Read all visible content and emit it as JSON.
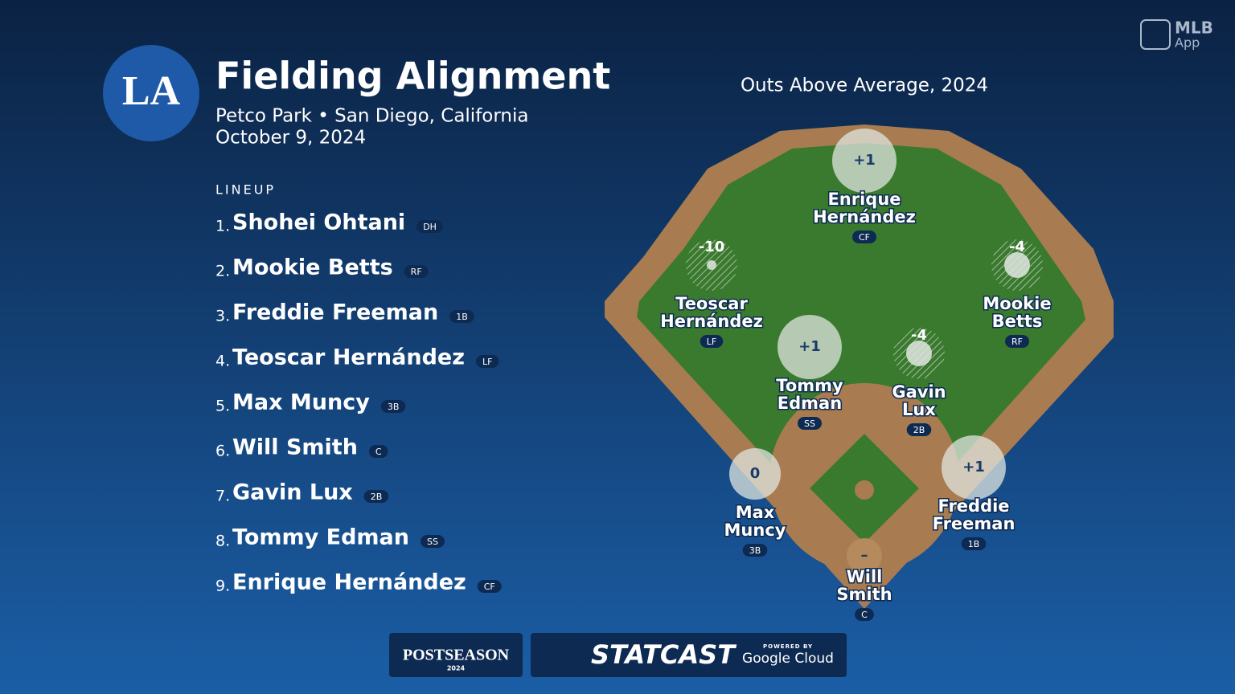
{
  "header": {
    "title": "Fielding Alignment",
    "venue": "Petco Park • San Diego, California",
    "date": "October 9, 2024",
    "team_logo": "LA"
  },
  "lineup": {
    "heading": "LINEUP",
    "players": [
      {
        "order": "1.",
        "name": "Shohei Ohtani",
        "position": "DH"
      },
      {
        "order": "2.",
        "name": "Mookie Betts",
        "position": "RF"
      },
      {
        "order": "3.",
        "name": "Freddie Freeman",
        "position": "1B"
      },
      {
        "order": "4.",
        "name": "Teoscar Hernández",
        "position": "LF"
      },
      {
        "order": "5.",
        "name": "Max Muncy",
        "position": "3B"
      },
      {
        "order": "6.",
        "name": "Will Smith",
        "position": "C"
      },
      {
        "order": "7.",
        "name": "Gavin Lux",
        "position": "2B"
      },
      {
        "order": "8.",
        "name": "Tommy Edman",
        "position": "SS"
      },
      {
        "order": "9.",
        "name": "Enrique Hernández",
        "position": "CF"
      }
    ]
  },
  "field": {
    "title": "Outs Above Average, 2024",
    "positions": [
      {
        "first": "Enrique",
        "last": "Hernández",
        "position": "CF",
        "oaa": "+1"
      },
      {
        "first": "Teoscar",
        "last": "Hernández",
        "position": "LF",
        "oaa": "-10"
      },
      {
        "first": "Mookie",
        "last": "Betts",
        "position": "RF",
        "oaa": "-4"
      },
      {
        "first": "Tommy",
        "last": "Edman",
        "position": "SS",
        "oaa": "+1"
      },
      {
        "first": "Gavin",
        "last": "Lux",
        "position": "2B",
        "oaa": "-4"
      },
      {
        "first": "Max",
        "last": "Muncy",
        "position": "3B",
        "oaa": "0"
      },
      {
        "first": "Freddie",
        "last": "Freeman",
        "position": "1B",
        "oaa": "+1"
      },
      {
        "first": "Will",
        "last": "Smith",
        "position": "C",
        "oaa": "–"
      }
    ]
  },
  "footer": {
    "postseason": "POSTSEASON",
    "postseason_year": "2024",
    "statcast": "STATCAST",
    "powered_by": "POWERED BY",
    "sponsor": "Google Cloud"
  },
  "app_badge": {
    "line1": "MLB",
    "line2": "App"
  }
}
